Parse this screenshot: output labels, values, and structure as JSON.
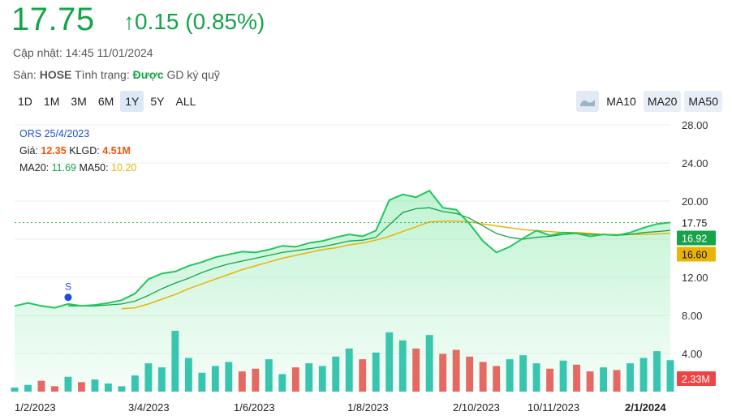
{
  "header": {
    "price": "17.75",
    "change": "↑0.15 (0.85%)",
    "updated_label": "Cập nhật:",
    "updated_value": "14:45 11/01/2024",
    "exchange_label": "Sàn:",
    "exchange_value": "HOSE",
    "status_label": "Tình trạng:",
    "status_value": "Được",
    "status_suffix": "GD ký quỹ"
  },
  "ranges": [
    "1D",
    "1M",
    "3M",
    "6M",
    "1Y",
    "5Y",
    "ALL"
  ],
  "active_range": "1Y",
  "ma_buttons": [
    "MA10",
    "MA20",
    "MA50"
  ],
  "tooltip": {
    "line1": "ORS 25/4/2023",
    "price_label": "Giá:",
    "price_value": "12.35",
    "vol_label": "KLGD:",
    "vol_value": "4.51M",
    "ma20_label": "MA20:",
    "ma20_value": "11.69",
    "ma50_label": "MA50:",
    "ma50_value": "10.20"
  },
  "colors": {
    "price_line": "#22c55e",
    "ma20": "#16a34a",
    "ma50": "#eab308",
    "vol_up": "#14b8a6",
    "vol_down": "#ef4444",
    "accent_green": "#16a34a"
  },
  "chart_data": {
    "type": "area",
    "y_ticks": [
      "28.00",
      "24.00",
      "20.00",
      "16.00",
      "12.00",
      "8.00",
      "4.00"
    ],
    "ylim": [
      0,
      28
    ],
    "x_ticks": [
      "1/2/2023",
      "3/4/2023",
      "1/6/2023",
      "1/8/2023",
      "2/10/2023",
      "10/11/2023",
      "2/1/2024"
    ],
    "price_dates": [
      "1/2",
      "8/2",
      "15/2",
      "22/2",
      "1/3",
      "8/3",
      "15/3",
      "22/3",
      "29/3",
      "5/4",
      "12/4",
      "19/4",
      "26/4",
      "3/5",
      "10/5",
      "17/5",
      "24/5",
      "31/5",
      "7/6",
      "14/6",
      "21/6",
      "28/6",
      "5/7",
      "12/7",
      "19/7",
      "26/7",
      "2/8",
      "9/8",
      "16/8",
      "23/8",
      "30/8",
      "6/9",
      "13/9",
      "20/9",
      "27/9",
      "4/10",
      "11/10",
      "18/10",
      "25/10",
      "1/11",
      "8/11",
      "15/11",
      "22/11",
      "29/11",
      "6/12",
      "13/12",
      "20/12",
      "27/12",
      "3/1",
      "11/1"
    ],
    "price": [
      9.0,
      9.3,
      9.0,
      8.8,
      9.2,
      9.0,
      9.1,
      9.3,
      9.6,
      10.3,
      11.8,
      12.4,
      12.6,
      13.2,
      13.6,
      14.1,
      14.4,
      14.7,
      14.6,
      14.9,
      15.3,
      15.2,
      15.6,
      15.8,
      16.2,
      16.5,
      16.3,
      16.9,
      20.1,
      20.7,
      20.4,
      21.1,
      19.3,
      19.1,
      17.6,
      15.8,
      14.6,
      15.2,
      16.1,
      16.9,
      16.4,
      16.7,
      16.6,
      16.3,
      16.5,
      16.4,
      16.7,
      17.2,
      17.6,
      17.75
    ],
    "ma20": [
      null,
      null,
      null,
      null,
      9.0,
      9.0,
      9.0,
      9.1,
      9.2,
      9.5,
      10.1,
      10.8,
      11.4,
      11.9,
      12.5,
      13.0,
      13.4,
      13.7,
      14.0,
      14.3,
      14.6,
      14.8,
      15.0,
      15.2,
      15.5,
      15.8,
      15.9,
      16.2,
      17.5,
      18.8,
      19.2,
      19.3,
      18.9,
      18.7,
      18.2,
      17.4,
      16.6,
      16.2,
      16.0,
      16.2,
      16.3,
      16.5,
      16.6,
      16.5,
      16.5,
      16.4,
      16.5,
      16.7,
      16.8,
      16.92
    ],
    "ma50": [
      null,
      null,
      null,
      null,
      null,
      null,
      null,
      null,
      8.7,
      8.8,
      9.2,
      9.7,
      10.2,
      10.8,
      11.3,
      11.8,
      12.3,
      12.8,
      13.2,
      13.6,
      14.0,
      14.3,
      14.6,
      14.9,
      15.1,
      15.4,
      15.6,
      15.9,
      16.3,
      16.8,
      17.3,
      17.8,
      17.9,
      17.9,
      17.8,
      17.6,
      17.4,
      17.2,
      17.0,
      16.9,
      16.8,
      16.7,
      16.7,
      16.6,
      16.5,
      16.5,
      16.5,
      16.5,
      16.55,
      16.6
    ],
    "volume": [
      0.3,
      0.5,
      0.8,
      0.4,
      1.1,
      0.7,
      0.9,
      0.6,
      0.4,
      1.2,
      2.1,
      1.8,
      4.51,
      2.5,
      1.4,
      1.9,
      2.2,
      1.5,
      1.7,
      2.4,
      1.3,
      1.8,
      2.1,
      1.9,
      2.6,
      3.2,
      2.4,
      2.9,
      4.4,
      3.8,
      3.2,
      4.2,
      2.8,
      3.1,
      2.6,
      2.2,
      1.9,
      2.4,
      2.7,
      2.1,
      1.7,
      2.3,
      2.0,
      1.5,
      1.8,
      1.6,
      2.1,
      2.5,
      3.0,
      2.33
    ],
    "vol_up": [
      true,
      true,
      false,
      false,
      true,
      false,
      true,
      true,
      true,
      true,
      true,
      true,
      true,
      true,
      true,
      true,
      true,
      false,
      false,
      true,
      true,
      false,
      true,
      true,
      true,
      true,
      false,
      true,
      true,
      true,
      false,
      true,
      false,
      false,
      false,
      false,
      false,
      true,
      true,
      true,
      false,
      true,
      false,
      false,
      true,
      false,
      true,
      true,
      true,
      true
    ],
    "last_price_label": "17.75",
    "ma20_label": "16.92",
    "ma50_label": "16.60",
    "volume_label": "2.33M",
    "signal_marker": "S",
    "signal_date": "1/3",
    "signal_value": 9.9
  }
}
